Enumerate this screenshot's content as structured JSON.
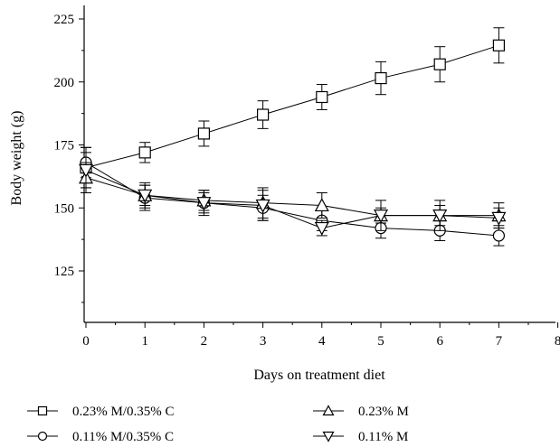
{
  "chart_data": {
    "type": "line",
    "title": "",
    "xlabel": "Days on treatment diet",
    "ylabel": "Body weight (g)",
    "xlim": [
      0,
      8
    ],
    "ylim": [
      100,
      230
    ],
    "xticks": [
      "0",
      "1",
      "2",
      "3",
      "4",
      "5",
      "6",
      "7",
      "8"
    ],
    "yticks": [
      "125",
      "150",
      "175",
      "200",
      "225"
    ],
    "grid": false,
    "legend_position": "bottom",
    "series": [
      {
        "name": "0.23% M/0.35% C",
        "marker": "square",
        "x": [
          0,
          1,
          2,
          3,
          4,
          5,
          6,
          7
        ],
        "y": [
          166,
          172,
          179.5,
          187,
          194,
          201.5,
          207,
          214.5
        ],
        "err": [
          8,
          4,
          5,
          5.5,
          5,
          6.5,
          7,
          7
        ]
      },
      {
        "name": "0.11% M/0.35% C",
        "marker": "circle",
        "x": [
          0,
          1,
          2,
          3,
          4,
          5,
          6,
          7
        ],
        "y": [
          168,
          154,
          152,
          150,
          145,
          142,
          141,
          139
        ],
        "err": [
          6,
          5,
          4,
          5,
          4,
          4,
          4,
          4
        ]
      },
      {
        "name": "0.23% M",
        "marker": "triangle-up",
        "x": [
          0,
          1,
          2,
          3,
          4,
          5,
          6,
          7
        ],
        "y": [
          162,
          155,
          153,
          152,
          151,
          147,
          147,
          147
        ],
        "err": [
          6,
          4,
          4,
          6,
          5,
          6,
          6,
          5
        ]
      },
      {
        "name": "0.11% M",
        "marker": "triangle-down",
        "x": [
          0,
          1,
          2,
          3,
          4,
          5,
          6,
          7
        ],
        "y": [
          165,
          155,
          152,
          151,
          142,
          147,
          147,
          146
        ],
        "err": [
          7,
          5,
          5,
          6,
          3,
          3,
          4,
          4
        ]
      }
    ]
  }
}
